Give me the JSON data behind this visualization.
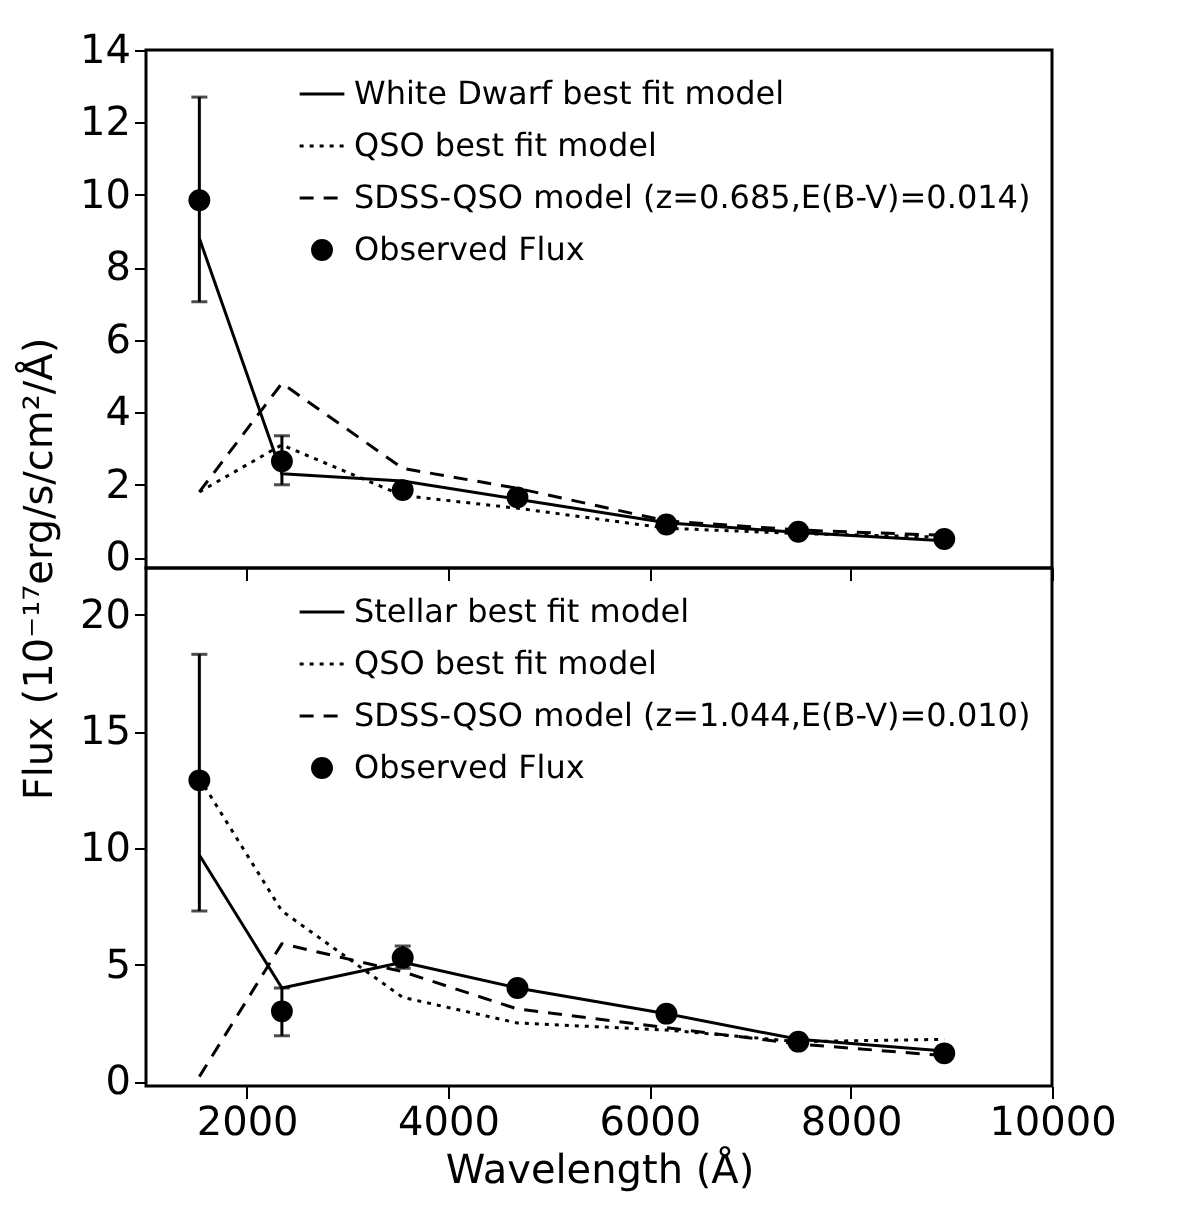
{
  "chart_data": [
    {
      "type": "line",
      "ylabel": "Flux (10⁻¹⁷erg/s/cm²/Å)",
      "x": [
        1530,
        2350,
        3550,
        4690,
        6170,
        7480,
        8930
      ],
      "xlim": [
        1000,
        10000
      ],
      "xticks": [
        2000,
        4000,
        6000,
        8000,
        10000
      ],
      "ylim": [
        -0.3,
        14
      ],
      "yticks": [
        0,
        2,
        4,
        6,
        8,
        10,
        12,
        14
      ],
      "tick_labels": "y",
      "legend": "top right",
      "series": [
        {
          "name": "White Dwarf best fit model",
          "type": "line",
          "color": "#000000",
          "line_style": "solid",
          "values": [
            8.8,
            2.3,
            2.1,
            1.6,
            0.95,
            0.68,
            0.45
          ]
        },
        {
          "name": "QSO best fit model",
          "type": "line",
          "color": "#000000",
          "line_style": "dotted",
          "values": [
            1.8,
            3.1,
            1.7,
            1.35,
            0.8,
            0.65,
            0.55
          ]
        },
        {
          "name": "SDSS-QSO model (z=0.685,E(B-V)=0.014)",
          "type": "line",
          "color": "#000000",
          "line_style": "dashed",
          "values": [
            1.8,
            4.8,
            2.45,
            1.9,
            1.0,
            0.75,
            0.6
          ]
        },
        {
          "name": "Observed Flux",
          "type": "scatter",
          "color": "#000000",
          "marker": "circle",
          "values": [
            9.85,
            2.65,
            1.85,
            1.65,
            0.9,
            0.7,
            0.5
          ],
          "errors": [
            [
              7.05,
              12.7
            ],
            [
              2.0,
              3.35
            ],
            null,
            null,
            null,
            null,
            null
          ]
        }
      ]
    },
    {
      "type": "line",
      "xlabel": "Wavelength (Å)",
      "x": [
        1530,
        2350,
        3550,
        4690,
        6170,
        7480,
        8930
      ],
      "xlim": [
        1000,
        10000
      ],
      "xticks": [
        2000,
        4000,
        6000,
        8000,
        10000
      ],
      "ylim": [
        -0.2,
        22
      ],
      "yticks": [
        0,
        5,
        10,
        15,
        20
      ],
      "legend": "top right",
      "series": [
        {
          "name": "Stellar best fit model",
          "type": "line",
          "color": "#000000",
          "line_style": "solid",
          "values": [
            9.7,
            4.0,
            5.1,
            4.0,
            2.9,
            1.8,
            1.3
          ]
        },
        {
          "name": "QSO best fit model",
          "type": "line",
          "color": "#000000",
          "line_style": "dotted",
          "values": [
            13.0,
            7.3,
            3.6,
            2.5,
            2.2,
            1.7,
            1.8
          ]
        },
        {
          "name": "SDSS-QSO model (z=1.044,E(B-V)=0.010)",
          "type": "line",
          "color": "#000000",
          "line_style": "dashed",
          "values": [
            0.2,
            5.9,
            4.7,
            3.1,
            2.3,
            1.6,
            1.1
          ]
        },
        {
          "name": "Observed Flux",
          "type": "scatter",
          "color": "#000000",
          "marker": "circle",
          "values": [
            12.9,
            3.0,
            5.3,
            4.0,
            2.9,
            1.7,
            1.2
          ],
          "errors": [
            [
              7.3,
              18.3
            ],
            [
              1.95,
              4.0
            ],
            [
              4.85,
              5.8
            ],
            null,
            null,
            null,
            null
          ]
        }
      ]
    }
  ]
}
